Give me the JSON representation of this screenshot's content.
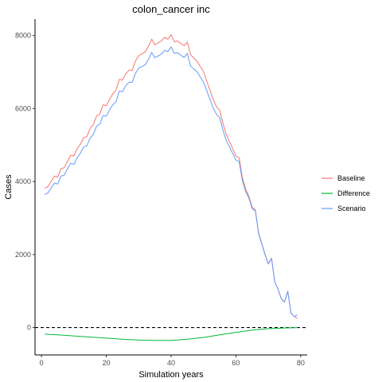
{
  "chart_data": {
    "type": "line",
    "title": "colon_cancer inc",
    "xlabel": "Simulation years",
    "ylabel": "Cases",
    "xlim": [
      -2,
      82
    ],
    "ylim": [
      -750,
      8450
    ],
    "x_ticks": [
      0,
      20,
      40,
      60,
      80
    ],
    "y_ticks": [
      0,
      2000,
      4000,
      6000,
      8000
    ],
    "grid": false,
    "legend_position": "right",
    "reference_line": {
      "y": 0,
      "style": "dashed",
      "color": "#000000"
    },
    "series": [
      {
        "name": "Baseline",
        "color": "#F8766D",
        "x": [
          1,
          2,
          3,
          4,
          5,
          6,
          7,
          8,
          9,
          10,
          11,
          12,
          13,
          14,
          15,
          16,
          17,
          18,
          19,
          20,
          21,
          22,
          23,
          24,
          25,
          26,
          27,
          28,
          29,
          30,
          31,
          32,
          33,
          34,
          35,
          36,
          37,
          38,
          39,
          40,
          41,
          42,
          43,
          44,
          45,
          46,
          47,
          48,
          49,
          50,
          51,
          52,
          53,
          54,
          55,
          56,
          57,
          58,
          59,
          60,
          61,
          62,
          63,
          64,
          65,
          66,
          67,
          68,
          69,
          70,
          71,
          72,
          73,
          74,
          75,
          76,
          77,
          78,
          79
        ],
        "values": [
          3820,
          3860,
          4010,
          4150,
          4120,
          4350,
          4380,
          4550,
          4720,
          4700,
          4900,
          5020,
          5200,
          5230,
          5450,
          5560,
          5800,
          5850,
          6100,
          6080,
          6250,
          6400,
          6500,
          6800,
          6780,
          6950,
          7050,
          7050,
          7300,
          7450,
          7500,
          7550,
          7700,
          7900,
          7750,
          7800,
          7850,
          7950,
          7900,
          8020,
          7830,
          7850,
          7780,
          7720,
          7820,
          7480,
          7380,
          7300,
          7150,
          7020,
          6750,
          6500,
          6250,
          6050,
          5950,
          5600,
          5300,
          5100,
          4900,
          4700,
          4650,
          4100,
          3800,
          3600,
          3300,
          3220,
          2600,
          2300,
          2000,
          1750,
          1900,
          1250,
          1050,
          800,
          700,
          1000,
          400,
          300,
          250
        ],
        "note": "approximate curve read from chart"
      },
      {
        "name": "Difference",
        "color": "#00BA38",
        "x": [
          1,
          5,
          10,
          15,
          20,
          25,
          30,
          35,
          40,
          45,
          50,
          55,
          60,
          65,
          70,
          75,
          79
        ],
        "values": [
          -180,
          -200,
          -230,
          -260,
          -290,
          -320,
          -340,
          -350,
          -350,
          -320,
          -270,
          -200,
          -130,
          -70,
          -30,
          -10,
          0
        ]
      },
      {
        "name": "Scenario",
        "color": "#619CFF",
        "x": [
          1,
          2,
          3,
          4,
          5,
          6,
          7,
          8,
          9,
          10,
          11,
          12,
          13,
          14,
          15,
          16,
          17,
          18,
          19,
          20,
          21,
          22,
          23,
          24,
          25,
          26,
          27,
          28,
          29,
          30,
          31,
          32,
          33,
          34,
          35,
          36,
          37,
          38,
          39,
          40,
          41,
          42,
          43,
          44,
          45,
          46,
          47,
          48,
          49,
          50,
          51,
          52,
          53,
          54,
          55,
          56,
          57,
          58,
          59,
          60,
          61,
          62,
          63,
          64,
          65,
          66,
          67,
          68,
          69,
          70,
          71,
          72,
          73,
          74,
          75,
          76,
          77,
          78,
          79
        ],
        "values": [
          3640,
          3690,
          3830,
          3960,
          3930,
          4150,
          4170,
          4350,
          4500,
          4470,
          4650,
          4780,
          4950,
          4980,
          5190,
          5290,
          5520,
          5570,
          5810,
          5790,
          5960,
          6100,
          6190,
          6480,
          6460,
          6620,
          6720,
          6720,
          6960,
          7110,
          7150,
          7200,
          7340,
          7540,
          7390,
          7440,
          7490,
          7590,
          7560,
          7690,
          7510,
          7530,
          7460,
          7400,
          7510,
          7170,
          7080,
          7010,
          6860,
          6730,
          6490,
          6250,
          6020,
          5840,
          5750,
          5410,
          5130,
          4950,
          4770,
          4590,
          4550,
          4020,
          3730,
          3550,
          3260,
          3190,
          2580,
          2280,
          1990,
          1740,
          1890,
          1240,
          1050,
          790,
          700,
          990,
          390,
          300,
          350
        ]
      }
    ]
  }
}
